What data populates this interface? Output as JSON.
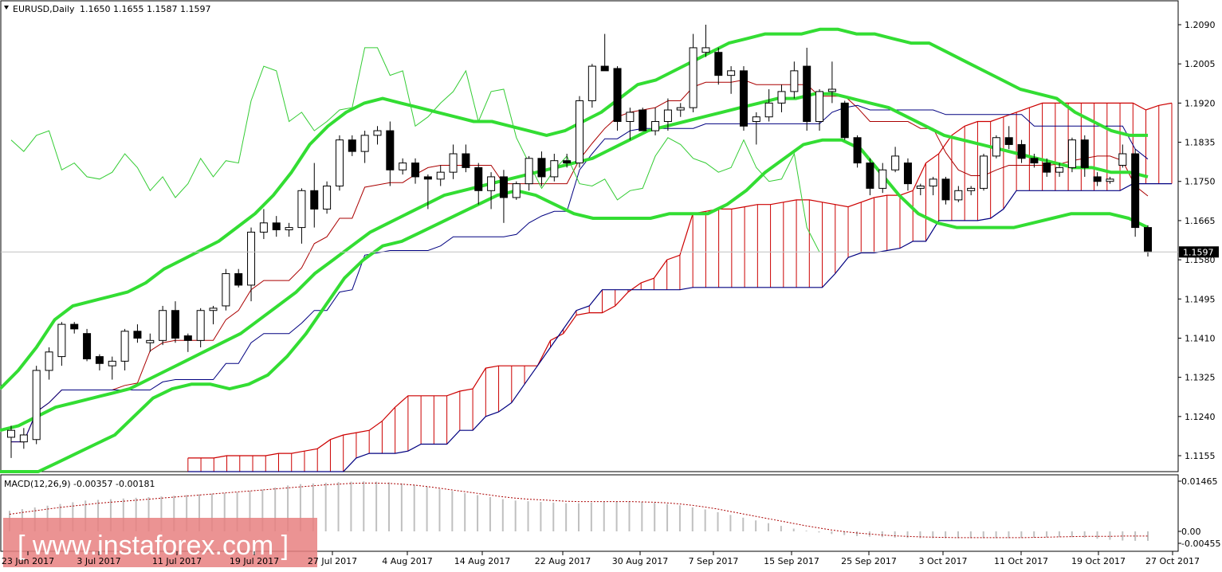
{
  "header": {
    "symbol": "EURUSD,Daily",
    "ohlc": "1.1650 1.1655 1.1587 1.1597",
    "dropdown_icon": "triangle-down-icon"
  },
  "macd": {
    "label": "MACD(12,26,9) -0.00357 -0.00181",
    "ticks": [
      "0.01465",
      "0.00",
      "-0.00455"
    ]
  },
  "price_axis": {
    "ticks": [
      "1.2090",
      "1.2005",
      "1.1920",
      "1.1835",
      "1.1750",
      "1.1665",
      "1.1580",
      "1.1495",
      "1.1410",
      "1.1325",
      "1.1240",
      "1.1155"
    ],
    "current_price": "1.1597"
  },
  "date_axis": [
    "23 Jun 2017",
    "3 Jul 2017",
    "11 Jul 2017",
    "19 Jul 2017",
    "27 Jul 2017",
    "4 Aug 2017",
    "14 Aug 2017",
    "22 Aug 2017",
    "30 Aug 2017",
    "7 Sep 2017",
    "15 Sep 2017",
    "25 Sep 2017",
    "3 Oct 2017",
    "11 Oct 2017",
    "19 Oct 2017",
    "27 Oct 2017"
  ],
  "watermark": "[ www.instaforex.com ]",
  "colors": {
    "bollinger": "#33dd33",
    "chikou": "#33cc33",
    "tenkan": "#aa0000",
    "kijun": "#000080",
    "cloud_fill": "#cc0000",
    "watermark_bg": "#e88080",
    "macd_bars": "#c0c0c0",
    "macd_signal": "#aa0000"
  },
  "chart_data": {
    "type": "candlestick",
    "symbol": "EURUSD",
    "timeframe": "Daily",
    "ylim": [
      1.1115,
      1.213
    ],
    "candles": [
      {
        "o": 1.1195,
        "h": 1.122,
        "l": 1.115,
        "c": 1.121
      },
      {
        "o": 1.1185,
        "h": 1.1215,
        "l": 1.117,
        "c": 1.12
      },
      {
        "o": 1.119,
        "h": 1.135,
        "l": 1.118,
        "c": 1.134
      },
      {
        "o": 1.134,
        "h": 1.139,
        "l": 1.132,
        "c": 1.138
      },
      {
        "o": 1.137,
        "h": 1.1445,
        "l": 1.135,
        "c": 1.144
      },
      {
        "o": 1.144,
        "h": 1.1445,
        "l": 1.142,
        "c": 1.143
      },
      {
        "o": 1.142,
        "h": 1.143,
        "l": 1.136,
        "c": 1.1365
      },
      {
        "o": 1.137,
        "h": 1.1375,
        "l": 1.134,
        "c": 1.1355
      },
      {
        "o": 1.135,
        "h": 1.137,
        "l": 1.132,
        "c": 1.136
      },
      {
        "o": 1.136,
        "h": 1.143,
        "l": 1.134,
        "c": 1.1425
      },
      {
        "o": 1.1425,
        "h": 1.144,
        "l": 1.14,
        "c": 1.141
      },
      {
        "o": 1.14,
        "h": 1.142,
        "l": 1.138,
        "c": 1.1405
      },
      {
        "o": 1.1405,
        "h": 1.148,
        "l": 1.1395,
        "c": 1.147
      },
      {
        "o": 1.147,
        "h": 1.149,
        "l": 1.14,
        "c": 1.141
      },
      {
        "o": 1.1415,
        "h": 1.142,
        "l": 1.138,
        "c": 1.1405
      },
      {
        "o": 1.1405,
        "h": 1.1475,
        "l": 1.139,
        "c": 1.147
      },
      {
        "o": 1.147,
        "h": 1.148,
        "l": 1.144,
        "c": 1.1475
      },
      {
        "o": 1.148,
        "h": 1.156,
        "l": 1.147,
        "c": 1.155
      },
      {
        "o": 1.155,
        "h": 1.156,
        "l": 1.152,
        "c": 1.1525
      },
      {
        "o": 1.1525,
        "h": 1.165,
        "l": 1.149,
        "c": 1.164
      },
      {
        "o": 1.164,
        "h": 1.169,
        "l": 1.1625,
        "c": 1.166
      },
      {
        "o": 1.166,
        "h": 1.1675,
        "l": 1.163,
        "c": 1.1645
      },
      {
        "o": 1.1645,
        "h": 1.166,
        "l": 1.163,
        "c": 1.165
      },
      {
        "o": 1.165,
        "h": 1.1735,
        "l": 1.1615,
        "c": 1.173
      },
      {
        "o": 1.173,
        "h": 1.179,
        "l": 1.165,
        "c": 1.169
      },
      {
        "o": 1.169,
        "h": 1.175,
        "l": 1.168,
        "c": 1.174
      },
      {
        "o": 1.174,
        "h": 1.185,
        "l": 1.173,
        "c": 1.184
      },
      {
        "o": 1.184,
        "h": 1.185,
        "l": 1.1805,
        "c": 1.1815
      },
      {
        "o": 1.1815,
        "h": 1.186,
        "l": 1.179,
        "c": 1.185
      },
      {
        "o": 1.185,
        "h": 1.187,
        "l": 1.183,
        "c": 1.186
      },
      {
        "o": 1.186,
        "h": 1.188,
        "l": 1.174,
        "c": 1.1775
      },
      {
        "o": 1.1775,
        "h": 1.18,
        "l": 1.1765,
        "c": 1.179
      },
      {
        "o": 1.179,
        "h": 1.18,
        "l": 1.1745,
        "c": 1.176
      },
      {
        "o": 1.176,
        "h": 1.1765,
        "l": 1.169,
        "c": 1.1755
      },
      {
        "o": 1.1755,
        "h": 1.1785,
        "l": 1.174,
        "c": 1.177
      },
      {
        "o": 1.177,
        "h": 1.183,
        "l": 1.1755,
        "c": 1.181
      },
      {
        "o": 1.181,
        "h": 1.183,
        "l": 1.177,
        "c": 1.178
      },
      {
        "o": 1.178,
        "h": 1.179,
        "l": 1.17,
        "c": 1.173
      },
      {
        "o": 1.173,
        "h": 1.177,
        "l": 1.169,
        "c": 1.176
      },
      {
        "o": 1.176,
        "h": 1.1775,
        "l": 1.166,
        "c": 1.1715
      },
      {
        "o": 1.1715,
        "h": 1.175,
        "l": 1.171,
        "c": 1.1745
      },
      {
        "o": 1.1745,
        "h": 1.1805,
        "l": 1.173,
        "c": 1.18
      },
      {
        "o": 1.18,
        "h": 1.1815,
        "l": 1.174,
        "c": 1.176
      },
      {
        "o": 1.176,
        "h": 1.181,
        "l": 1.175,
        "c": 1.1795
      },
      {
        "o": 1.1795,
        "h": 1.181,
        "l": 1.178,
        "c": 1.179
      },
      {
        "o": 1.179,
        "h": 1.1935,
        "l": 1.178,
        "c": 1.1925
      },
      {
        "o": 1.1925,
        "h": 1.2005,
        "l": 1.191,
        "c": 1.2
      },
      {
        "o": 1.2,
        "h": 1.207,
        "l": 1.199,
        "c": 1.199
      },
      {
        "o": 1.1995,
        "h": 1.2,
        "l": 1.186,
        "c": 1.188
      },
      {
        "o": 1.188,
        "h": 1.191,
        "l": 1.184,
        "c": 1.19
      },
      {
        "o": 1.1905,
        "h": 1.191,
        "l": 1.186,
        "c": 1.186
      },
      {
        "o": 1.186,
        "h": 1.191,
        "l": 1.185,
        "c": 1.188
      },
      {
        "o": 1.188,
        "h": 1.193,
        "l": 1.186,
        "c": 1.1905
      },
      {
        "o": 1.1905,
        "h": 1.192,
        "l": 1.189,
        "c": 1.191
      },
      {
        "o": 1.191,
        "h": 1.207,
        "l": 1.19,
        "c": 1.204
      },
      {
        "o": 1.203,
        "h": 1.209,
        "l": 1.202,
        "c": 1.204
      },
      {
        "o": 1.203,
        "h": 1.204,
        "l": 1.196,
        "c": 1.198
      },
      {
        "o": 1.198,
        "h": 1.2,
        "l": 1.194,
        "c": 1.199
      },
      {
        "o": 1.199,
        "h": 1.2,
        "l": 1.186,
        "c": 1.187
      },
      {
        "o": 1.188,
        "h": 1.19,
        "l": 1.183,
        "c": 1.189
      },
      {
        "o": 1.189,
        "h": 1.195,
        "l": 1.188,
        "c": 1.192
      },
      {
        "o": 1.192,
        "h": 1.196,
        "l": 1.19,
        "c": 1.1945
      },
      {
        "o": 1.1945,
        "h": 1.201,
        "l": 1.193,
        "c": 1.199
      },
      {
        "o": 1.2,
        "h": 1.204,
        "l": 1.186,
        "c": 1.188
      },
      {
        "o": 1.188,
        "h": 1.195,
        "l": 1.186,
        "c": 1.1945
      },
      {
        "o": 1.1945,
        "h": 1.201,
        "l": 1.192,
        "c": 1.195
      },
      {
        "o": 1.192,
        "h": 1.1925,
        "l": 1.184,
        "c": 1.1845
      },
      {
        "o": 1.1845,
        "h": 1.185,
        "l": 1.178,
        "c": 1.179
      },
      {
        "o": 1.179,
        "h": 1.18,
        "l": 1.172,
        "c": 1.1735
      },
      {
        "o": 1.1735,
        "h": 1.179,
        "l": 1.1725,
        "c": 1.1775
      },
      {
        "o": 1.1775,
        "h": 1.1825,
        "l": 1.177,
        "c": 1.1805
      },
      {
        "o": 1.179,
        "h": 1.18,
        "l": 1.173,
        "c": 1.1745
      },
      {
        "o": 1.1735,
        "h": 1.1745,
        "l": 1.172,
        "c": 1.174
      },
      {
        "o": 1.174,
        "h": 1.176,
        "l": 1.172,
        "c": 1.1755
      },
      {
        "o": 1.1755,
        "h": 1.176,
        "l": 1.17,
        "c": 1.171
      },
      {
        "o": 1.171,
        "h": 1.174,
        "l": 1.1705,
        "c": 1.173
      },
      {
        "o": 1.173,
        "h": 1.174,
        "l": 1.172,
        "c": 1.1735
      },
      {
        "o": 1.1735,
        "h": 1.181,
        "l": 1.173,
        "c": 1.1805
      },
      {
        "o": 1.1805,
        "h": 1.185,
        "l": 1.18,
        "c": 1.1845
      },
      {
        "o": 1.1845,
        "h": 1.187,
        "l": 1.182,
        "c": 1.183
      },
      {
        "o": 1.183,
        "h": 1.184,
        "l": 1.179,
        "c": 1.18
      },
      {
        "o": 1.18,
        "h": 1.181,
        "l": 1.178,
        "c": 1.179
      },
      {
        "o": 1.179,
        "h": 1.18,
        "l": 1.176,
        "c": 1.177
      },
      {
        "o": 1.177,
        "h": 1.179,
        "l": 1.176,
        "c": 1.178
      },
      {
        "o": 1.178,
        "h": 1.1845,
        "l": 1.177,
        "c": 1.184
      },
      {
        "o": 1.184,
        "h": 1.185,
        "l": 1.176,
        "c": 1.178
      },
      {
        "o": 1.176,
        "h": 1.177,
        "l": 1.174,
        "c": 1.175
      },
      {
        "o": 1.175,
        "h": 1.176,
        "l": 1.1745,
        "c": 1.1755
      },
      {
        "o": 1.1785,
        "h": 1.183,
        "l": 1.178,
        "c": 1.181
      },
      {
        "o": 1.181,
        "h": 1.182,
        "l": 1.163,
        "c": 1.165
      },
      {
        "o": 1.165,
        "h": 1.1655,
        "l": 1.1587,
        "c": 1.1597
      }
    ],
    "bollinger_upper": [
      1.13,
      1.134,
      1.139,
      1.145,
      1.148,
      1.149,
      1.15,
      1.151,
      1.153,
      1.156,
      1.158,
      1.16,
      1.162,
      1.165,
      1.168,
      1.172,
      1.177,
      1.183,
      1.187,
      1.19,
      1.192,
      1.193,
      1.192,
      1.191,
      1.19,
      1.189,
      1.188,
      1.188,
      1.187,
      1.186,
      1.185,
      1.186,
      1.188,
      1.19,
      1.193,
      1.196,
      1.197,
      1.199,
      1.201,
      1.203,
      1.205,
      1.206,
      1.207,
      1.207,
      1.207,
      1.208,
      1.208,
      1.207,
      1.207,
      1.206,
      1.205,
      1.205,
      1.203,
      1.201,
      1.199,
      1.197,
      1.195,
      1.194,
      1.193,
      1.19,
      1.188,
      1.186,
      1.185,
      1.185
    ],
    "bollinger_mid": [
      1.121,
      1.122,
      1.124,
      1.126,
      1.127,
      1.128,
      1.129,
      1.13,
      1.132,
      1.134,
      1.136,
      1.138,
      1.14,
      1.142,
      1.145,
      1.148,
      1.151,
      1.155,
      1.158,
      1.161,
      1.164,
      1.166,
      1.168,
      1.17,
      1.172,
      1.173,
      1.174,
      1.175,
      1.176,
      1.177,
      1.178,
      1.179,
      1.18,
      1.182,
      1.184,
      1.186,
      1.187,
      1.188,
      1.189,
      1.19,
      1.191,
      1.192,
      1.193,
      1.193,
      1.194,
      1.194,
      1.193,
      1.192,
      1.191,
      1.189,
      1.187,
      1.185,
      1.184,
      1.183,
      1.182,
      1.181,
      1.18,
      1.179,
      1.178,
      1.178,
      1.177,
      1.177,
      1.176
    ],
    "bollinger_lower": [
      1.108,
      1.11,
      1.112,
      1.114,
      1.116,
      1.118,
      1.12,
      1.124,
      1.128,
      1.13,
      1.131,
      1.131,
      1.13,
      1.131,
      1.133,
      1.137,
      1.142,
      1.148,
      1.154,
      1.158,
      1.161,
      1.162,
      1.164,
      1.166,
      1.168,
      1.17,
      1.172,
      1.173,
      1.172,
      1.17,
      1.168,
      1.167,
      1.167,
      1.167,
      1.167,
      1.168,
      1.168,
      1.168,
      1.17,
      1.173,
      1.177,
      1.18,
      1.183,
      1.184,
      1.184,
      1.182,
      1.177,
      1.172,
      1.168,
      1.166,
      1.165,
      1.165,
      1.165,
      1.165,
      1.166,
      1.167,
      1.168,
      1.168,
      1.168,
      1.167,
      1.165
    ],
    "macd_histogram": [
      0.006,
      0.0065,
      0.007,
      0.0075,
      0.008,
      0.0085,
      0.009,
      0.0092,
      0.0094,
      0.0096,
      0.0098,
      0.01,
      0.0102,
      0.0104,
      0.0106,
      0.0108,
      0.011,
      0.0112,
      0.0114,
      0.0118,
      0.0122,
      0.0128,
      0.0134,
      0.0138,
      0.014,
      0.0142,
      0.0144,
      0.0145,
      0.0146,
      0.0145,
      0.0143,
      0.014,
      0.0136,
      0.013,
      0.0124,
      0.0118,
      0.0112,
      0.0106,
      0.01,
      0.0094,
      0.009,
      0.0088,
      0.0086,
      0.0084,
      0.0082,
      0.0082,
      0.0084,
      0.0086,
      0.0088,
      0.0088,
      0.0086,
      0.0084,
      0.008,
      0.0076,
      0.007,
      0.0064,
      0.0056,
      0.0048,
      0.004,
      0.0032,
      0.0024,
      0.0016,
      0.0008,
      0.0002,
      -0.0004,
      -0.001,
      -0.0014,
      -0.0018,
      -0.002,
      -0.0022,
      -0.0024,
      -0.0025,
      -0.0026,
      -0.0026,
      -0.0026,
      -0.0026,
      -0.0026,
      -0.0026,
      -0.0026,
      -0.0026,
      -0.0025,
      -0.0024,
      -0.0023,
      -0.0022,
      -0.0022,
      -0.0024,
      -0.0028,
      -0.0032,
      -0.0035,
      -0.0036,
      -0.0036
    ],
    "macd_signal": [
      0.005,
      0.0055,
      0.006,
      0.0065,
      0.007,
      0.0074,
      0.0078,
      0.0082,
      0.0085,
      0.0088,
      0.0091,
      0.0094,
      0.0097,
      0.01,
      0.0103,
      0.0106,
      0.0109,
      0.0112,
      0.0115,
      0.0118,
      0.0121,
      0.0124,
      0.0127,
      0.013,
      0.0133,
      0.0136,
      0.0138,
      0.014,
      0.0141,
      0.0141,
      0.014,
      0.0138,
      0.0135,
      0.0131,
      0.0126,
      0.0121,
      0.0116,
      0.0111,
      0.0106,
      0.0101,
      0.0097,
      0.0094,
      0.0092,
      0.009,
      0.0088,
      0.0087,
      0.0087,
      0.0087,
      0.0087,
      0.0087,
      0.0086,
      0.0085,
      0.0083,
      0.008,
      0.0076,
      0.0071,
      0.0065,
      0.0058,
      0.0051,
      0.0044,
      0.0037,
      0.003,
      0.0023,
      0.0016,
      0.001,
      0.0004,
      -0.0001,
      -0.0006,
      -0.001,
      -0.0014,
      -0.0017,
      -0.0019,
      -0.0021,
      -0.0022,
      -0.0023,
      -0.0024,
      -0.0024,
      -0.0024,
      -0.0024,
      -0.0024,
      -0.0024,
      -0.0023,
      -0.0022,
      -0.0021,
      -0.002,
      -0.0019,
      -0.0019,
      -0.0019,
      -0.0018,
      -0.0018,
      -0.0018
    ],
    "macd_ylim": [
      -0.00455,
      0.01465
    ],
    "current_price": 1.1597
  }
}
